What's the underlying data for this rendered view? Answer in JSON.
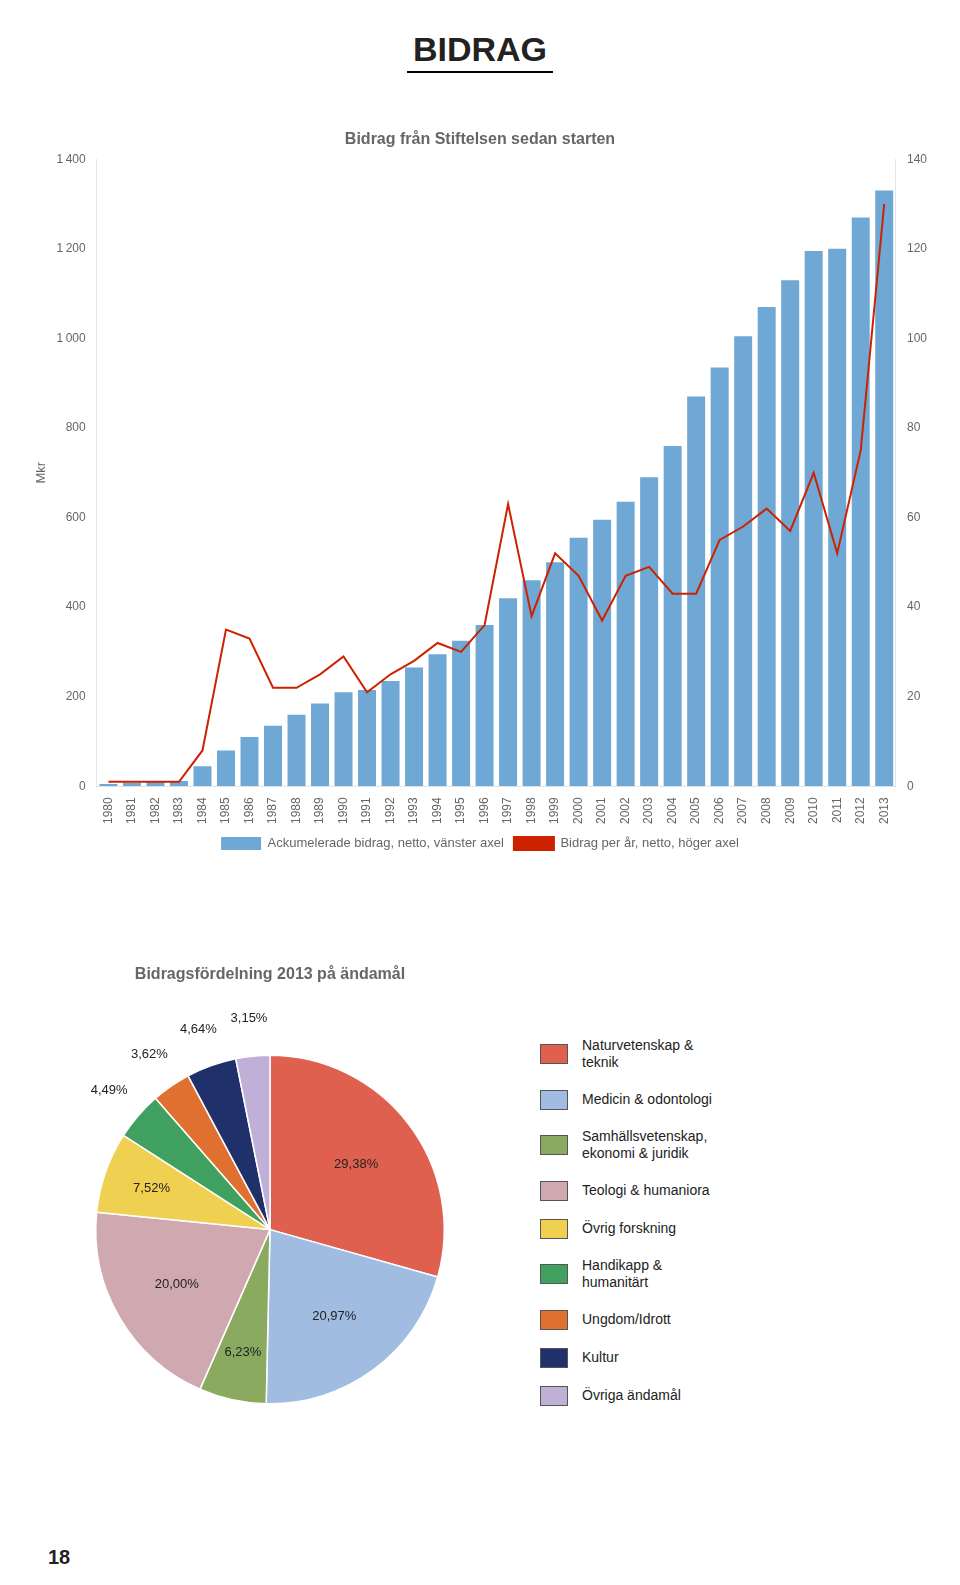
{
  "title": "BIDRAG",
  "annotations": [
    "18"
  ],
  "chart_data": [
    {
      "type": "bar",
      "title": "Bidrag från Stiftelsen sedan starten",
      "categories": [
        "1980",
        "1981",
        "1982",
        "1983",
        "1984",
        "1985",
        "1986",
        "1987",
        "1988",
        "1989",
        "1990",
        "1991",
        "1992",
        "1993",
        "1994",
        "1995",
        "1996",
        "1997",
        "1998",
        "1999",
        "2000",
        "2001",
        "2002",
        "2003",
        "2004",
        "2005",
        "2006",
        "2007",
        "2008",
        "2009",
        "2010",
        "2011",
        "2012",
        "2013"
      ],
      "ylabel": "Mkr",
      "series": [
        {
          "name": "Ackumelerade bidrag, netto, vänster axel",
          "type": "bar",
          "color": "#6fa8d4",
          "values": [
            5,
            8,
            10,
            12,
            45,
            80,
            110,
            135,
            160,
            185,
            210,
            215,
            235,
            265,
            295,
            325,
            360,
            420,
            460,
            500,
            555,
            595,
            635,
            690,
            760,
            870,
            935,
            1005,
            1070,
            1130,
            1195,
            1200,
            1270,
            1330
          ]
        },
        {
          "name": "Bidrag per år, netto, höger axel",
          "type": "line",
          "color": "#cc2200",
          "axis": "y2",
          "values": [
            1,
            1,
            1,
            1,
            8,
            35,
            33,
            22,
            22,
            25,
            29,
            21,
            25,
            28,
            32,
            30,
            36,
            63,
            38,
            52,
            47,
            37,
            47,
            49,
            43,
            43,
            55,
            58,
            62,
            57,
            70,
            52,
            75,
            130
          ]
        }
      ],
      "ylim": [
        0,
        1400
      ],
      "yticks": [
        0,
        200,
        400,
        600,
        800,
        {
          "value": 1000,
          "label": "1 000"
        },
        {
          "value": 1200,
          "label": "1 200"
        },
        {
          "value": 1400,
          "label": "1 400"
        }
      ],
      "y2lim": [
        0,
        140
      ],
      "y2ticks": [
        0,
        20,
        40,
        60,
        80,
        100,
        120,
        140
      ],
      "grid": false,
      "legend": "bottom"
    },
    {
      "type": "pie",
      "title": "Bidragsfördelning 2013 på ändamål",
      "categories": [
        "Naturvetenskap &\nteknik",
        "Medicin & odontologi",
        "Samhällsvetenskap,\nekonomi & juridik",
        "Teologi & humaniora",
        "Övrig forskning",
        "Handikapp &\nhumanitärt",
        "Ungdom/Idrott",
        "Kultur",
        "Övriga ändamål"
      ],
      "values": [
        29.38,
        20.97,
        6.23,
        20.0,
        7.52,
        4.49,
        3.62,
        4.64,
        3.15
      ],
      "value_labels": [
        "29,38%",
        "20,97%",
        "6,23%",
        "20,00%",
        "7,52%",
        "4,49%",
        "3,62%",
        "4,64%",
        "3,15%"
      ],
      "colors": [
        "#e06050",
        "#a0bce0",
        "#8aaa60",
        "#d0a8b0",
        "#f0d050",
        "#40a060",
        "#e07030",
        "#20306a",
        "#c0b0d8"
      ],
      "data_labels": true,
      "legend": "right"
    }
  ]
}
